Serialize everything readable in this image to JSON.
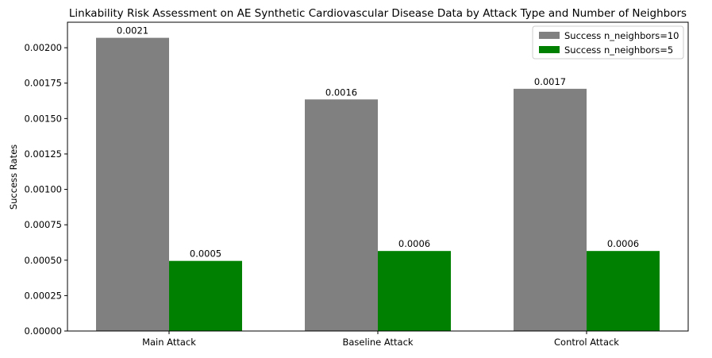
{
  "chart_data": {
    "type": "bar",
    "title": "Linkability Risk Assessment on AE Synthetic Cardiovascular Disease Data by Attack Type and Number of Neighbors",
    "xlabel": "",
    "ylabel": "Success Rates",
    "categories": [
      "Main Attack",
      "Baseline Attack",
      "Control Attack"
    ],
    "series": [
      {
        "name": "Success n_neighbors=10",
        "color": "#808080",
        "values": [
          0.00207,
          0.001635,
          0.00171
        ],
        "labels": [
          "0.0021",
          "0.0016",
          "0.0017"
        ]
      },
      {
        "name": "Success n_neighbors=5",
        "color": "#008000",
        "values": [
          0.000495,
          0.000565,
          0.000565
        ],
        "labels": [
          "0.0005",
          "0.0006",
          "0.0006"
        ]
      }
    ],
    "ylim": [
      0,
      0.00218
    ],
    "yticks": [
      0,
      0.00025,
      0.0005,
      0.00075,
      0.001,
      0.00125,
      0.0015,
      0.00175,
      0.002
    ],
    "ytick_labels": [
      "0.00000",
      "0.00025",
      "0.00050",
      "0.00075",
      "0.00100",
      "0.00125",
      "0.00150",
      "0.00175",
      "0.00200"
    ],
    "grid": false,
    "legend_position": "top-right"
  }
}
